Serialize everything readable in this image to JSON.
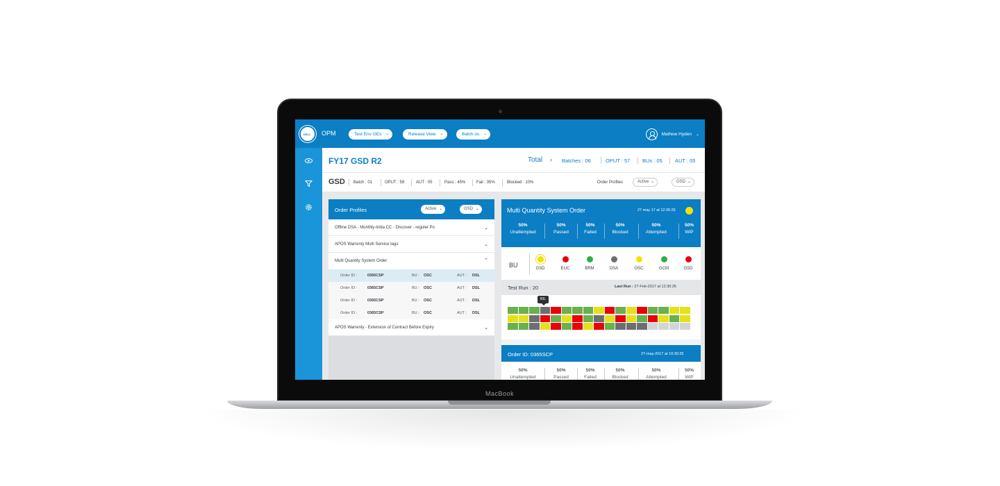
{
  "device": {
    "brand_label": "MacBook"
  },
  "header": {
    "app_name": "OPM",
    "logo_text": "DELL",
    "nav_pills": [
      "Test Env GEs",
      "Release View",
      "Batch os"
    ],
    "user_name": "Mathew Hyden"
  },
  "summary": {
    "title": "FY17 GSD R2",
    "total_label": "Total",
    "stats": [
      "Batches : 06",
      "OPUT : 57",
      "BUs : 05",
      "AUT : 05"
    ]
  },
  "sub_summary": {
    "title": "GSD",
    "stats": [
      "Batch : 01",
      "OPUT : 59",
      "AUT : 05",
      "Pass : 45%",
      "Fail : 35%",
      "Blocked : 10%"
    ],
    "order_profiles_label": "Order Profiles",
    "status_select": "Active",
    "bu_select": "GSD"
  },
  "left_panel": {
    "title": "Order Profiles",
    "status_select": "Active",
    "bu_select": "GSD",
    "profiles": [
      "Offline DSA - Monthly-Initia CC - Discover - reguler Po",
      "APOS Warrenty Multi Service tags",
      "Multi Quantity System Order"
    ],
    "orders": [
      {
        "id_label": "Order ID :",
        "id": "0365CSP",
        "bu_label": "BU :",
        "bu": "OSC",
        "aut_label": "AUT :",
        "aut": "DSL"
      },
      {
        "id_label": "Order ID :",
        "id": "0365CSP",
        "bu_label": "BU :",
        "bu": "OSC",
        "aut_label": "AUT :",
        "aut": "DSL"
      },
      {
        "id_label": "Order ID :",
        "id": "0365CSP",
        "bu_label": "BU :",
        "bu": "OSC",
        "aut_label": "AUT :",
        "aut": "DSL"
      },
      {
        "id_label": "Order ID :",
        "id": "0365CSP",
        "bu_label": "BU :",
        "bu": "OSC",
        "aut_label": "AUT :",
        "aut": "DSL"
      }
    ],
    "last_profile": "APOS Warrenty - Extension of Contract Before Expiry"
  },
  "right_panel": {
    "title": "Multi Quantity System Order",
    "date": "27 may 17 at 12:30:25",
    "status_color": "#f5e000",
    "kpis": [
      {
        "value": "50%",
        "label": "Unattempted"
      },
      {
        "value": "50%",
        "label": "Passed"
      },
      {
        "value": "50%",
        "label": "Failed"
      },
      {
        "value": "50%",
        "label": "Blocked"
      },
      {
        "value": "50%",
        "label": "Attempted"
      },
      {
        "value": "50%",
        "label": "WIP"
      }
    ],
    "bu_label": "BU",
    "bus": [
      {
        "name": "GSD",
        "color": "#f5e000"
      },
      {
        "name": "EUC",
        "color": "#e8000b"
      },
      {
        "name": "BRM",
        "color": "#2fae3f"
      },
      {
        "name": "DSA",
        "color": "#6d6e71"
      },
      {
        "name": "OSC",
        "color": "#f5e000"
      },
      {
        "name": "GCM",
        "color": "#2fae3f"
      },
      {
        "name": "GSD",
        "color": "#e8000b"
      }
    ],
    "test_run_label": "Test Run : 20",
    "last_run_label": "Last Run :",
    "last_run_value": "27-Feb-2017 at 12:30:25",
    "tooltip": "BIL",
    "status_colors": {
      "g": "#6ab04c",
      "y": "#e6e01c",
      "r": "#e8000b",
      "k": "#6d6e71",
      "e": "#d3d4d6"
    },
    "test_grid": [
      "gggkrgggyrgyrggyy",
      "yykrgyrgkyrygrygy",
      "ggkyrgryrgkkkeeee"
    ]
  },
  "order_panel": {
    "title": "Order ID: 0365SCP",
    "date": "27-may-2017 at 10:30:25",
    "kpis": [
      {
        "value": "50%",
        "label": "Unattempted"
      },
      {
        "value": "50%",
        "label": "Passed"
      },
      {
        "value": "50%",
        "label": "Failed"
      },
      {
        "value": "50%",
        "label": "Blocked"
      },
      {
        "value": "50%",
        "label": "Attempted"
      },
      {
        "value": "50%",
        "label": "WIP"
      }
    ]
  }
}
